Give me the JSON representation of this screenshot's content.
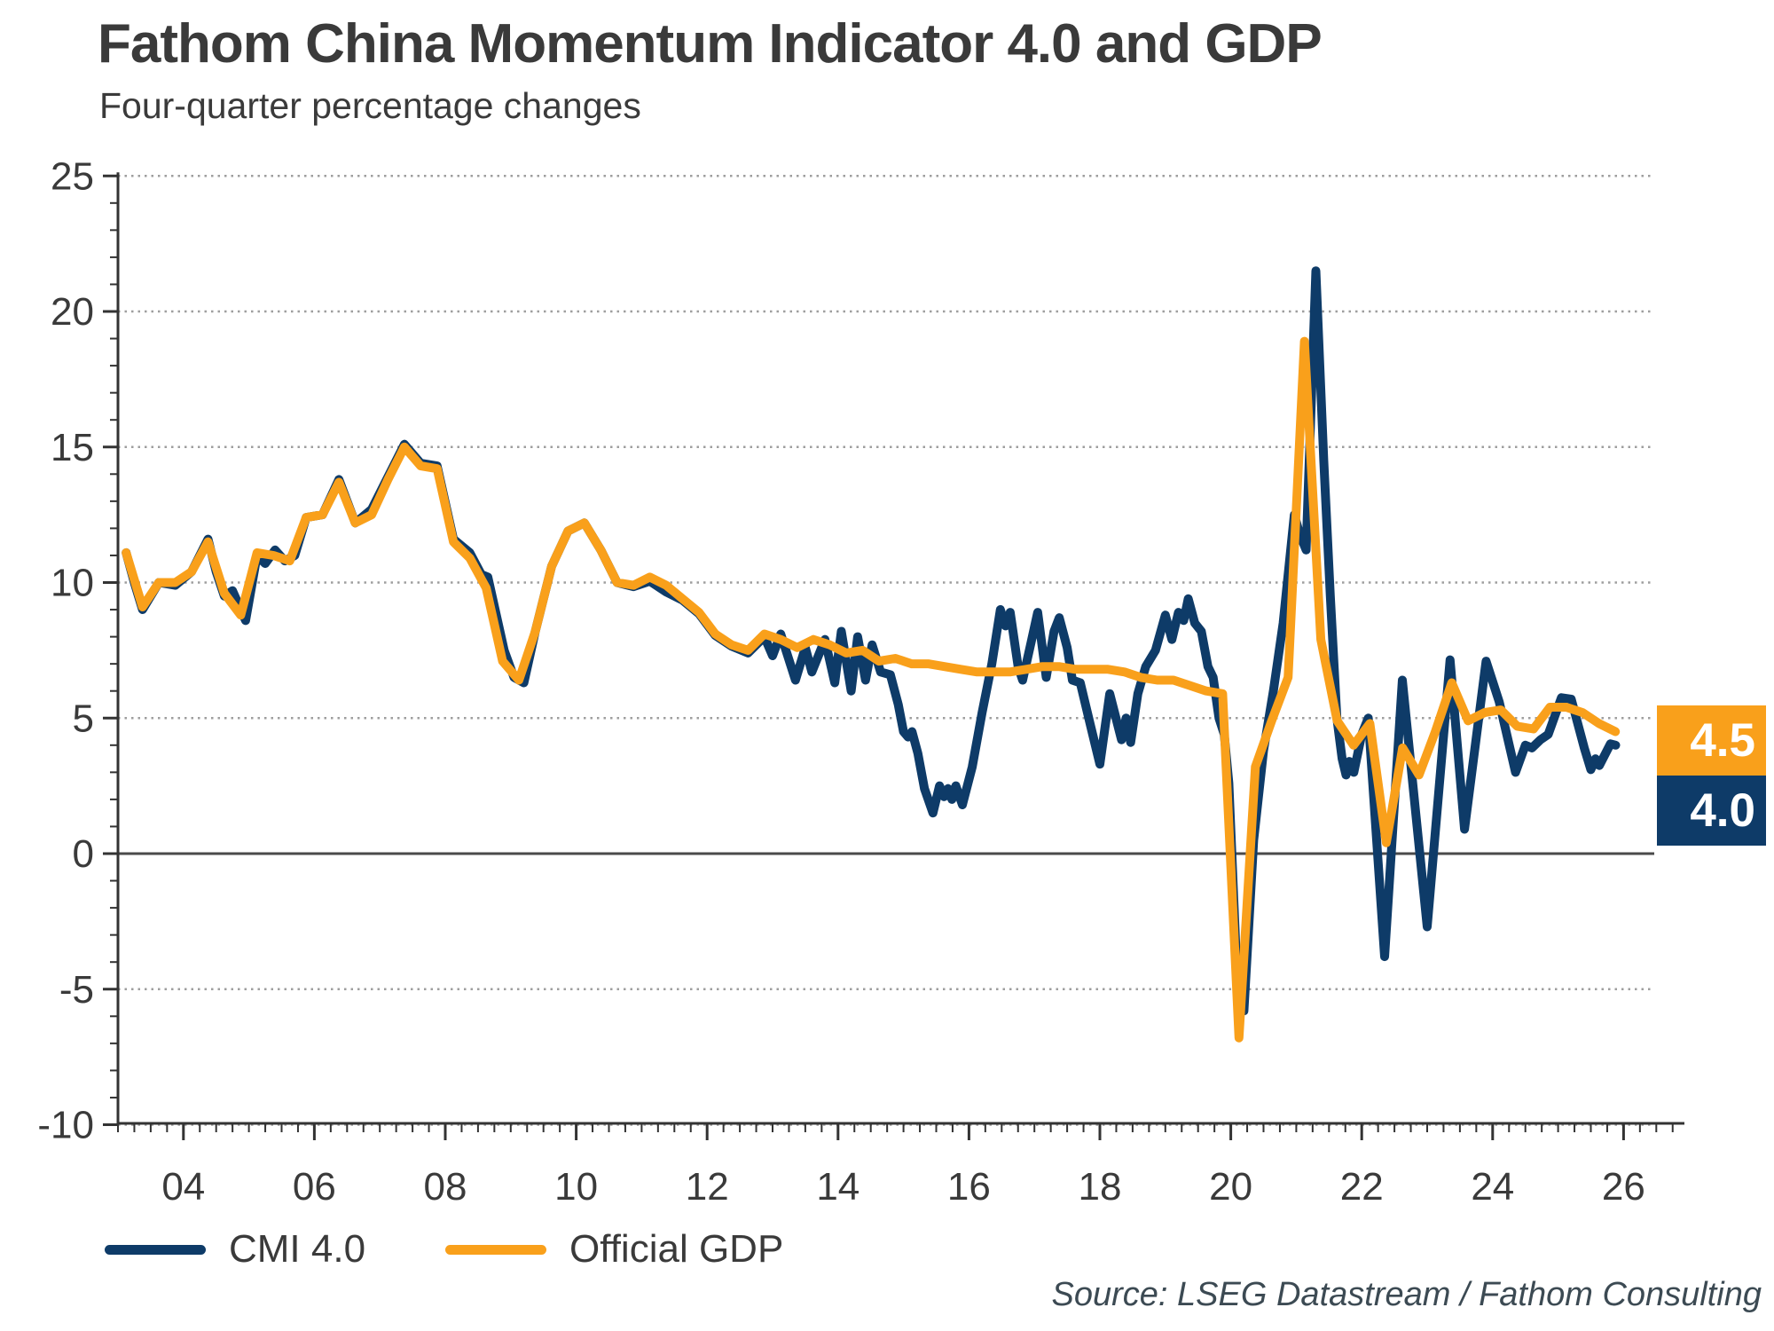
{
  "title": "Fathom China Momentum Indicator 4.0 and GDP",
  "subtitle": "Four-quarter percentage changes",
  "source": "Source: LSEG Datastream / Fathom Consulting",
  "colors": {
    "cmi_navy": "#0E3B68",
    "gdp_orange": "#F9A01B",
    "text": "#3a3a3a",
    "grid": "#9e9e9e",
    "axis": "#333333",
    "zero_line": "#4a4a4a"
  },
  "end_value_labels": [
    {
      "name": "gdp",
      "label": "4.5",
      "color": "#F9A01B"
    },
    {
      "name": "cmi",
      "label": "4.0",
      "color": "#0E3B68"
    }
  ],
  "legend": [
    {
      "name": "cmi",
      "label": "CMI 4.0",
      "color": "#0E3B68"
    },
    {
      "name": "gdp",
      "label": "Official GDP",
      "color": "#F9A01B"
    }
  ],
  "chart_data": {
    "type": "line",
    "title": "Fathom China Momentum Indicator 4.0 and GDP",
    "subtitle": "Four-quarter percentage changes",
    "xlabel": "",
    "ylabel": "Four-quarter percentage change",
    "xlim": [
      2003.0,
      2026.4
    ],
    "ylim": [
      -10,
      25
    ],
    "grid": "horizontal dotted at labelled ticks, solid line at zero",
    "legend_position": "bottom-left",
    "y_ticks": [
      25,
      20,
      15,
      10,
      5,
      0,
      -5,
      -10
    ],
    "x_ticks": [
      {
        "label": "04",
        "year": 2004
      },
      {
        "label": "06",
        "year": 2006
      },
      {
        "label": "08",
        "year": 2008
      },
      {
        "label": "10",
        "year": 2010
      },
      {
        "label": "12",
        "year": 2012
      },
      {
        "label": "14",
        "year": 2014
      },
      {
        "label": "16",
        "year": 2016
      },
      {
        "label": "18",
        "year": 2018
      },
      {
        "label": "20",
        "year": 2020
      },
      {
        "label": "22",
        "year": 2022
      },
      {
        "label": "24",
        "year": 2024
      },
      {
        "label": "26",
        "year": 2026
      }
    ],
    "series": [
      {
        "name": "CMI 4.0",
        "color": "#0E3B68",
        "final_value": 4.0,
        "points": [
          [
            2003.125,
            11.1
          ],
          [
            2003.25,
            10.0
          ],
          [
            2003.375,
            9.0
          ],
          [
            2003.625,
            10.0
          ],
          [
            2003.875,
            9.9
          ],
          [
            2004.125,
            10.4
          ],
          [
            2004.375,
            11.6
          ],
          [
            2004.5,
            10.4
          ],
          [
            2004.625,
            9.5
          ],
          [
            2004.75,
            9.7
          ],
          [
            2004.95,
            8.6
          ],
          [
            2005.125,
            11.0
          ],
          [
            2005.25,
            10.7
          ],
          [
            2005.4,
            11.2
          ],
          [
            2005.55,
            10.8
          ],
          [
            2005.7,
            11.0
          ],
          [
            2005.875,
            12.4
          ],
          [
            2006.125,
            12.5
          ],
          [
            2006.375,
            13.8
          ],
          [
            2006.625,
            12.2
          ],
          [
            2006.875,
            12.7
          ],
          [
            2007.125,
            13.9
          ],
          [
            2007.375,
            15.1
          ],
          [
            2007.625,
            14.4
          ],
          [
            2007.875,
            14.3
          ],
          [
            2008.125,
            11.6
          ],
          [
            2008.375,
            11.1
          ],
          [
            2008.55,
            10.3
          ],
          [
            2008.65,
            10.2
          ],
          [
            2008.9,
            7.5
          ],
          [
            2009.05,
            6.5
          ],
          [
            2009.2,
            6.3
          ],
          [
            2009.375,
            8.2
          ],
          [
            2009.625,
            10.6
          ],
          [
            2009.875,
            11.9
          ],
          [
            2010.125,
            12.2
          ],
          [
            2010.375,
            11.2
          ],
          [
            2010.625,
            10.0
          ],
          [
            2010.875,
            9.85
          ],
          [
            2011.125,
            10.05
          ],
          [
            2011.375,
            9.65
          ],
          [
            2011.625,
            9.35
          ],
          [
            2011.875,
            8.85
          ],
          [
            2012.125,
            8.05
          ],
          [
            2012.375,
            7.65
          ],
          [
            2012.625,
            7.4
          ],
          [
            2012.875,
            8.0
          ],
          [
            2013.0,
            7.3
          ],
          [
            2013.125,
            8.1
          ],
          [
            2013.35,
            6.4
          ],
          [
            2013.5,
            7.6
          ],
          [
            2013.6,
            6.7
          ],
          [
            2013.8,
            7.9
          ],
          [
            2013.95,
            6.3
          ],
          [
            2014.05,
            8.2
          ],
          [
            2014.2,
            6.0
          ],
          [
            2014.3,
            8.0
          ],
          [
            2014.42,
            6.4
          ],
          [
            2014.52,
            7.7
          ],
          [
            2014.65,
            6.7
          ],
          [
            2014.8,
            6.6
          ],
          [
            2014.92,
            5.5
          ],
          [
            2015.0,
            4.5
          ],
          [
            2015.07,
            4.3
          ],
          [
            2015.13,
            4.5
          ],
          [
            2015.22,
            3.7
          ],
          [
            2015.32,
            2.4
          ],
          [
            2015.45,
            1.5
          ],
          [
            2015.55,
            2.5
          ],
          [
            2015.62,
            2.1
          ],
          [
            2015.68,
            2.4
          ],
          [
            2015.74,
            2.0
          ],
          [
            2015.8,
            2.5
          ],
          [
            2015.9,
            1.8
          ],
          [
            2016.05,
            3.2
          ],
          [
            2016.2,
            5.2
          ],
          [
            2016.35,
            7.0
          ],
          [
            2016.48,
            9.0
          ],
          [
            2016.56,
            8.4
          ],
          [
            2016.63,
            8.9
          ],
          [
            2016.75,
            6.9
          ],
          [
            2016.82,
            6.4
          ],
          [
            2016.95,
            7.8
          ],
          [
            2017.05,
            8.9
          ],
          [
            2017.18,
            6.5
          ],
          [
            2017.3,
            8.2
          ],
          [
            2017.38,
            8.7
          ],
          [
            2017.5,
            7.6
          ],
          [
            2017.58,
            6.4
          ],
          [
            2017.7,
            6.3
          ],
          [
            2017.85,
            4.8
          ],
          [
            2018.0,
            3.3
          ],
          [
            2018.15,
            5.9
          ],
          [
            2018.33,
            4.2
          ],
          [
            2018.4,
            5.0
          ],
          [
            2018.47,
            4.1
          ],
          [
            2018.58,
            5.9
          ],
          [
            2018.7,
            6.9
          ],
          [
            2018.85,
            7.5
          ],
          [
            2019.0,
            8.8
          ],
          [
            2019.1,
            7.9
          ],
          [
            2019.2,
            8.9
          ],
          [
            2019.28,
            8.6
          ],
          [
            2019.35,
            9.4
          ],
          [
            2019.45,
            8.5
          ],
          [
            2019.55,
            8.2
          ],
          [
            2019.65,
            6.9
          ],
          [
            2019.73,
            6.5
          ],
          [
            2019.82,
            5.0
          ],
          [
            2019.9,
            4.4
          ],
          [
            2019.97,
            2.6
          ],
          [
            2020.1,
            -4.8
          ],
          [
            2020.2,
            -5.8
          ],
          [
            2020.35,
            0.5
          ],
          [
            2020.5,
            3.8
          ],
          [
            2020.65,
            6.0
          ],
          [
            2020.8,
            8.5
          ],
          [
            2020.97,
            12.5
          ],
          [
            2021.05,
            11.8
          ],
          [
            2021.15,
            11.2
          ],
          [
            2021.3,
            21.5
          ],
          [
            2021.42,
            14.5
          ],
          [
            2021.52,
            9.5
          ],
          [
            2021.62,
            5.0
          ],
          [
            2021.7,
            3.5
          ],
          [
            2021.76,
            2.9
          ],
          [
            2021.81,
            3.4
          ],
          [
            2021.88,
            3.0
          ],
          [
            2022.0,
            4.4
          ],
          [
            2022.1,
            5.0
          ],
          [
            2022.35,
            -3.8
          ],
          [
            2022.62,
            6.4
          ],
          [
            2023.0,
            -2.7
          ],
          [
            2023.35,
            7.15
          ],
          [
            2023.57,
            0.9
          ],
          [
            2023.9,
            7.1
          ],
          [
            2024.1,
            5.6
          ],
          [
            2024.35,
            3.0
          ],
          [
            2024.5,
            4.0
          ],
          [
            2024.6,
            3.9
          ],
          [
            2024.73,
            4.2
          ],
          [
            2024.85,
            4.4
          ],
          [
            2025.05,
            5.75
          ],
          [
            2025.2,
            5.7
          ],
          [
            2025.4,
            3.9
          ],
          [
            2025.5,
            3.1
          ],
          [
            2025.57,
            3.5
          ],
          [
            2025.63,
            3.25
          ],
          [
            2025.8,
            4.05
          ],
          [
            2025.88,
            4.0
          ]
        ]
      },
      {
        "name": "Official GDP",
        "color": "#F9A01B",
        "final_value": 4.5,
        "points": [
          [
            2003.125,
            11.1
          ],
          [
            2003.375,
            9.1
          ],
          [
            2003.625,
            10.0
          ],
          [
            2003.875,
            10.0
          ],
          [
            2004.125,
            10.4
          ],
          [
            2004.375,
            11.5
          ],
          [
            2004.625,
            9.6
          ],
          [
            2004.875,
            8.8
          ],
          [
            2005.125,
            11.1
          ],
          [
            2005.375,
            11.0
          ],
          [
            2005.625,
            10.8
          ],
          [
            2005.875,
            12.4
          ],
          [
            2006.125,
            12.5
          ],
          [
            2006.375,
            13.7
          ],
          [
            2006.625,
            12.2
          ],
          [
            2006.875,
            12.5
          ],
          [
            2007.125,
            13.8
          ],
          [
            2007.375,
            15.0
          ],
          [
            2007.625,
            14.3
          ],
          [
            2007.875,
            14.2
          ],
          [
            2008.125,
            11.5
          ],
          [
            2008.375,
            10.9
          ],
          [
            2008.625,
            9.8
          ],
          [
            2008.875,
            7.1
          ],
          [
            2009.125,
            6.4
          ],
          [
            2009.375,
            8.2
          ],
          [
            2009.625,
            10.6
          ],
          [
            2009.875,
            11.9
          ],
          [
            2010.125,
            12.2
          ],
          [
            2010.375,
            11.2
          ],
          [
            2010.625,
            10.0
          ],
          [
            2010.875,
            9.9
          ],
          [
            2011.125,
            10.2
          ],
          [
            2011.375,
            9.9
          ],
          [
            2011.625,
            9.4
          ],
          [
            2011.875,
            8.9
          ],
          [
            2012.125,
            8.1
          ],
          [
            2012.375,
            7.7
          ],
          [
            2012.625,
            7.5
          ],
          [
            2012.875,
            8.1
          ],
          [
            2013.125,
            7.9
          ],
          [
            2013.375,
            7.6
          ],
          [
            2013.625,
            7.9
          ],
          [
            2013.875,
            7.7
          ],
          [
            2014.125,
            7.4
          ],
          [
            2014.375,
            7.5
          ],
          [
            2014.625,
            7.1
          ],
          [
            2014.875,
            7.2
          ],
          [
            2015.125,
            7.0
          ],
          [
            2015.375,
            7.0
          ],
          [
            2015.625,
            6.9
          ],
          [
            2015.875,
            6.8
          ],
          [
            2016.125,
            6.7
          ],
          [
            2016.375,
            6.7
          ],
          [
            2016.625,
            6.7
          ],
          [
            2016.875,
            6.8
          ],
          [
            2017.125,
            6.9
          ],
          [
            2017.375,
            6.9
          ],
          [
            2017.625,
            6.8
          ],
          [
            2017.875,
            6.8
          ],
          [
            2018.125,
            6.8
          ],
          [
            2018.375,
            6.7
          ],
          [
            2018.625,
            6.5
          ],
          [
            2018.875,
            6.4
          ],
          [
            2019.125,
            6.4
          ],
          [
            2019.375,
            6.2
          ],
          [
            2019.625,
            6.0
          ],
          [
            2019.875,
            5.9
          ],
          [
            2020.125,
            -6.8
          ],
          [
            2020.375,
            3.2
          ],
          [
            2020.625,
            4.9
          ],
          [
            2020.875,
            6.5
          ],
          [
            2021.125,
            18.9
          ],
          [
            2021.375,
            7.9
          ],
          [
            2021.625,
            4.9
          ],
          [
            2021.875,
            4.0
          ],
          [
            2022.125,
            4.8
          ],
          [
            2022.375,
            0.4
          ],
          [
            2022.625,
            3.9
          ],
          [
            2022.875,
            2.9
          ],
          [
            2023.125,
            4.5
          ],
          [
            2023.375,
            6.3
          ],
          [
            2023.625,
            4.9
          ],
          [
            2023.875,
            5.2
          ],
          [
            2024.125,
            5.3
          ],
          [
            2024.375,
            4.7
          ],
          [
            2024.625,
            4.6
          ],
          [
            2024.875,
            5.4
          ],
          [
            2025.125,
            5.4
          ],
          [
            2025.375,
            5.2
          ],
          [
            2025.625,
            4.8
          ],
          [
            2025.875,
            4.5
          ]
        ]
      }
    ]
  }
}
